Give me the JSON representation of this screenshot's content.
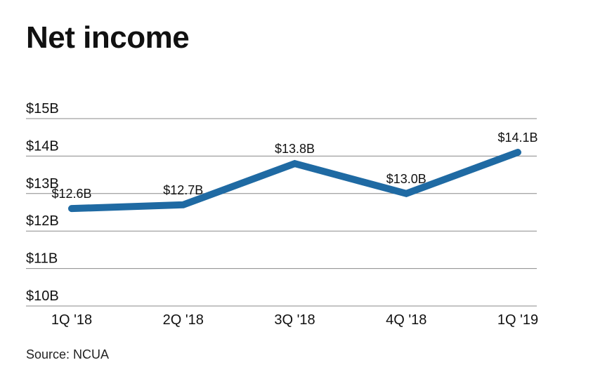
{
  "title": "Net income",
  "source": "Source: NCUA",
  "colors": {
    "line": "#1f6aa3",
    "grid": "#8a8a8a",
    "text": "#111111"
  },
  "chart_data": {
    "type": "line",
    "title": "Net income",
    "categories": [
      "1Q '18",
      "2Q '18",
      "3Q '18",
      "4Q '18",
      "1Q '19"
    ],
    "series": [
      {
        "name": "Net income",
        "values": [
          12.6,
          12.7,
          13.8,
          13.0,
          14.1
        ],
        "labels": [
          "$12.6B",
          "$12.7B",
          "$13.8B",
          "$13.0B",
          "$14.1B"
        ]
      }
    ],
    "y_ticks": [
      10,
      11,
      12,
      13,
      14,
      15
    ],
    "y_tick_labels": [
      "$10B",
      "$11B",
      "$12B",
      "$13B",
      "$14B",
      "$15B"
    ],
    "ylim": [
      10,
      15
    ],
    "xlabel": "",
    "ylabel": "",
    "grid": true,
    "legend": "none"
  }
}
